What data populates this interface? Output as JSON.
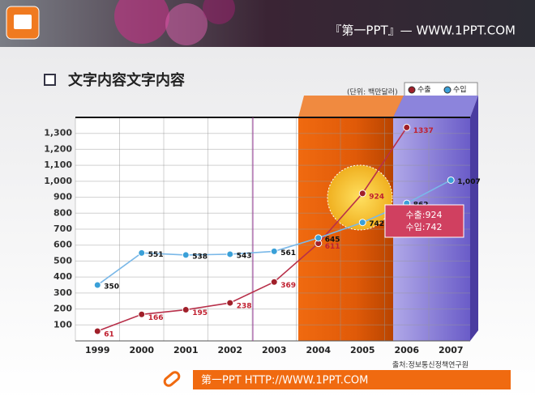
{
  "header": {
    "brand": "『第一PPT』— WWW.1PPT.COM"
  },
  "slide": {
    "title": "文字内容文字内容",
    "source": "출처:정보통신정책연구원",
    "footer": "第一PPT HTTP://WWW.1PPT.COM"
  },
  "chart_data": {
    "type": "line",
    "unit_note": "(단위: 백만달러)",
    "categories": [
      "1999",
      "2000",
      "2001",
      "2002",
      "2003",
      "2004",
      "2005",
      "2006",
      "2007"
    ],
    "series": [
      {
        "name": "수출",
        "color": "#b8304a",
        "values": [
          61,
          166,
          195,
          238,
          369,
          611,
          924,
          1337,
          null
        ]
      },
      {
        "name": "수입",
        "color": "#7ab8e8",
        "values": [
          350,
          551,
          538,
          543,
          561,
          645,
          742,
          862,
          1007
        ],
        "value_labels": [
          "350",
          "551",
          "538",
          "543",
          "561",
          "645",
          "742",
          "862",
          "1,007"
        ]
      }
    ],
    "ylim": [
      0,
      1400
    ],
    "yticks": [
      100,
      200,
      300,
      400,
      500,
      600,
      700,
      800,
      900,
      {
        "value": 1000,
        "label": "1,000"
      },
      {
        "value": 1100,
        "label": "1,100"
      },
      {
        "value": 1200,
        "label": "1,200"
      },
      {
        "value": 1300,
        "label": "1,300"
      }
    ],
    "grid": true,
    "annotations": [
      "수출:924",
      "수입:742"
    ]
  }
}
